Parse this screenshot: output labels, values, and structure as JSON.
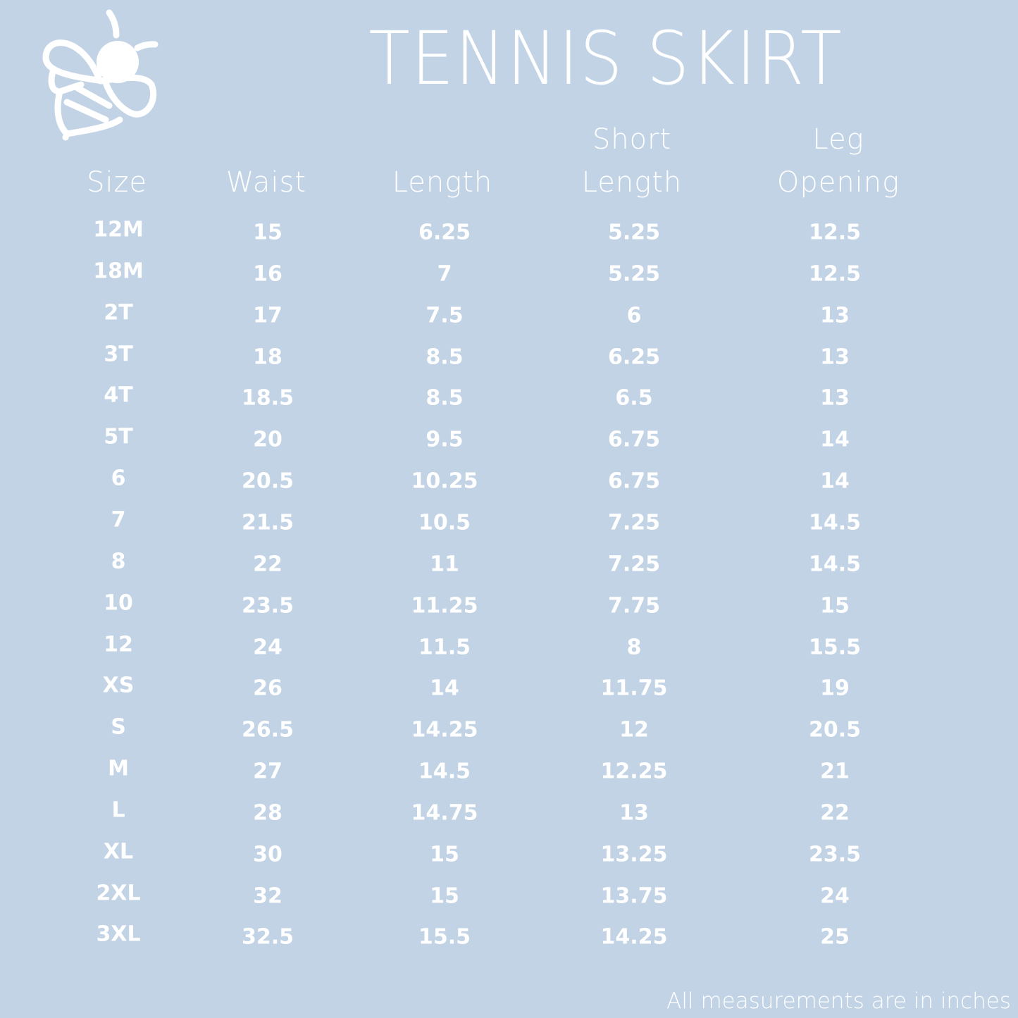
{
  "title": "TENNIS SKIRT",
  "logo": {
    "icon": "bee-icon"
  },
  "columns": [
    {
      "line1": "",
      "line2": "Size"
    },
    {
      "line1": "",
      "line2": "Waist"
    },
    {
      "line1": "",
      "line2": "Length"
    },
    {
      "line1": "Short",
      "line2": "Length"
    },
    {
      "line1": "Leg",
      "line2": "Opening"
    }
  ],
  "rows": [
    [
      "12M",
      "15",
      "6.25",
      "5.25",
      "12.5"
    ],
    [
      "18M",
      "16",
      "7",
      "5.25",
      "12.5"
    ],
    [
      "2T",
      "17",
      "7.5",
      "6",
      "13"
    ],
    [
      "3T",
      "18",
      "8.5",
      "6.25",
      "13"
    ],
    [
      "4T",
      "18.5",
      "8.5",
      "6.5",
      "13"
    ],
    [
      "5T",
      "20",
      "9.5",
      "6.75",
      "14"
    ],
    [
      "6",
      "20.5",
      "10.25",
      "6.75",
      "14"
    ],
    [
      "7",
      "21.5",
      "10.5",
      "7.25",
      "14.5"
    ],
    [
      "8",
      "22",
      "11",
      "7.25",
      "14.5"
    ],
    [
      "10",
      "23.5",
      "11.25",
      "7.75",
      "15"
    ],
    [
      "12",
      "24",
      "11.5",
      "8",
      "15.5"
    ],
    [
      "XS",
      "26",
      "14",
      "11.75",
      "19"
    ],
    [
      "S",
      "26.5",
      "14.25",
      "12",
      "20.5"
    ],
    [
      "M",
      "27",
      "14.5",
      "12.25",
      "21"
    ],
    [
      "L",
      "28",
      "14.75",
      "13",
      "22"
    ],
    [
      "XL",
      "30",
      "15",
      "13.25",
      "23.5"
    ],
    [
      "2XL",
      "32",
      "15",
      "13.75",
      "24"
    ],
    [
      "3XL",
      "32.5",
      "15.5",
      "14.25",
      "25"
    ]
  ],
  "footnote": "All measurements are in inches",
  "colors": {
    "background": "#c1d3e5",
    "text": "#ffffff"
  }
}
